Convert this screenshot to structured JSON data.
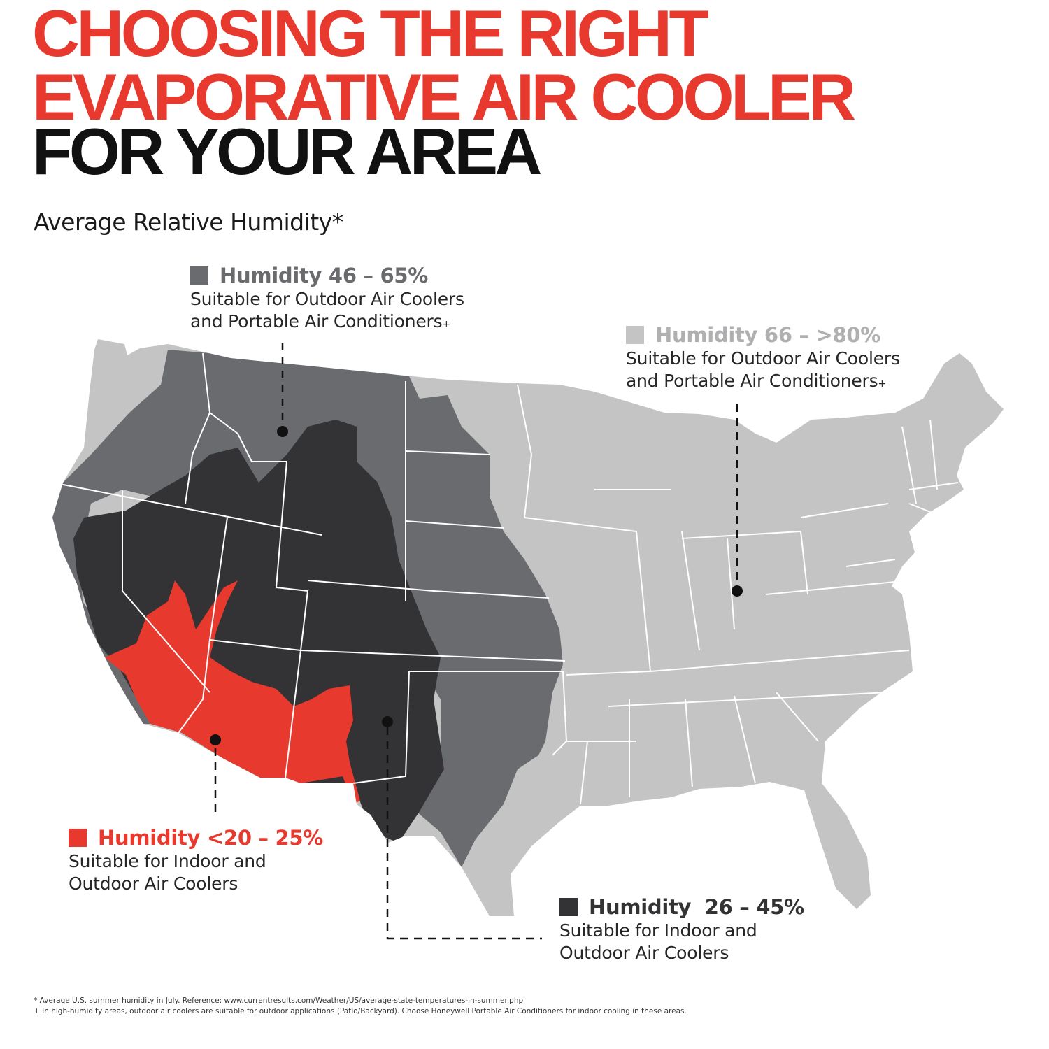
{
  "title": {
    "line1": "CHOOSING THE RIGHT",
    "line2": "EVAPORATIVE AIR COOLER",
    "line3": "FOR YOUR AREA"
  },
  "subtitle": "Average Relative Humidity*",
  "colors": {
    "accent_red": "#e8392f",
    "title_black": "#111111",
    "zone_dark": "#333335",
    "zone_mid": "#6a6b6e",
    "zone_light": "#c4c4c5",
    "state_border": "#ffffff"
  },
  "legend": {
    "mid": {
      "heading": "Humidity 46 – 65%",
      "line1": "Suitable for Outdoor Air Coolers",
      "line2": "and Portable Air Conditioners",
      "mark": "+"
    },
    "light": {
      "heading": "Humidity 66 – >80%",
      "line1": "Suitable for Outdoor Air Coolers",
      "line2": "and Portable Air Conditioners",
      "mark": "+"
    },
    "red": {
      "heading": "Humidity <20 – 25%",
      "line1": "Suitable for Indoor and",
      "line2": "Outdoor Air Coolers"
    },
    "dark": {
      "heading": "Humidity  26 – 45%",
      "line1": "Suitable for Indoor and",
      "line2": "Outdoor Air Coolers"
    }
  },
  "footnotes": {
    "f1": "* Average U.S. summer humidity in July. Reference: www.currentresults.com/Weather/US/average-state-temperatures-in-summer.php",
    "f2": "+ In high-humidity areas, outdoor air coolers are suitable for outdoor applications (Patio/Backyard). Choose Honeywell Portable Air Conditioners for indoor cooling in these areas."
  }
}
